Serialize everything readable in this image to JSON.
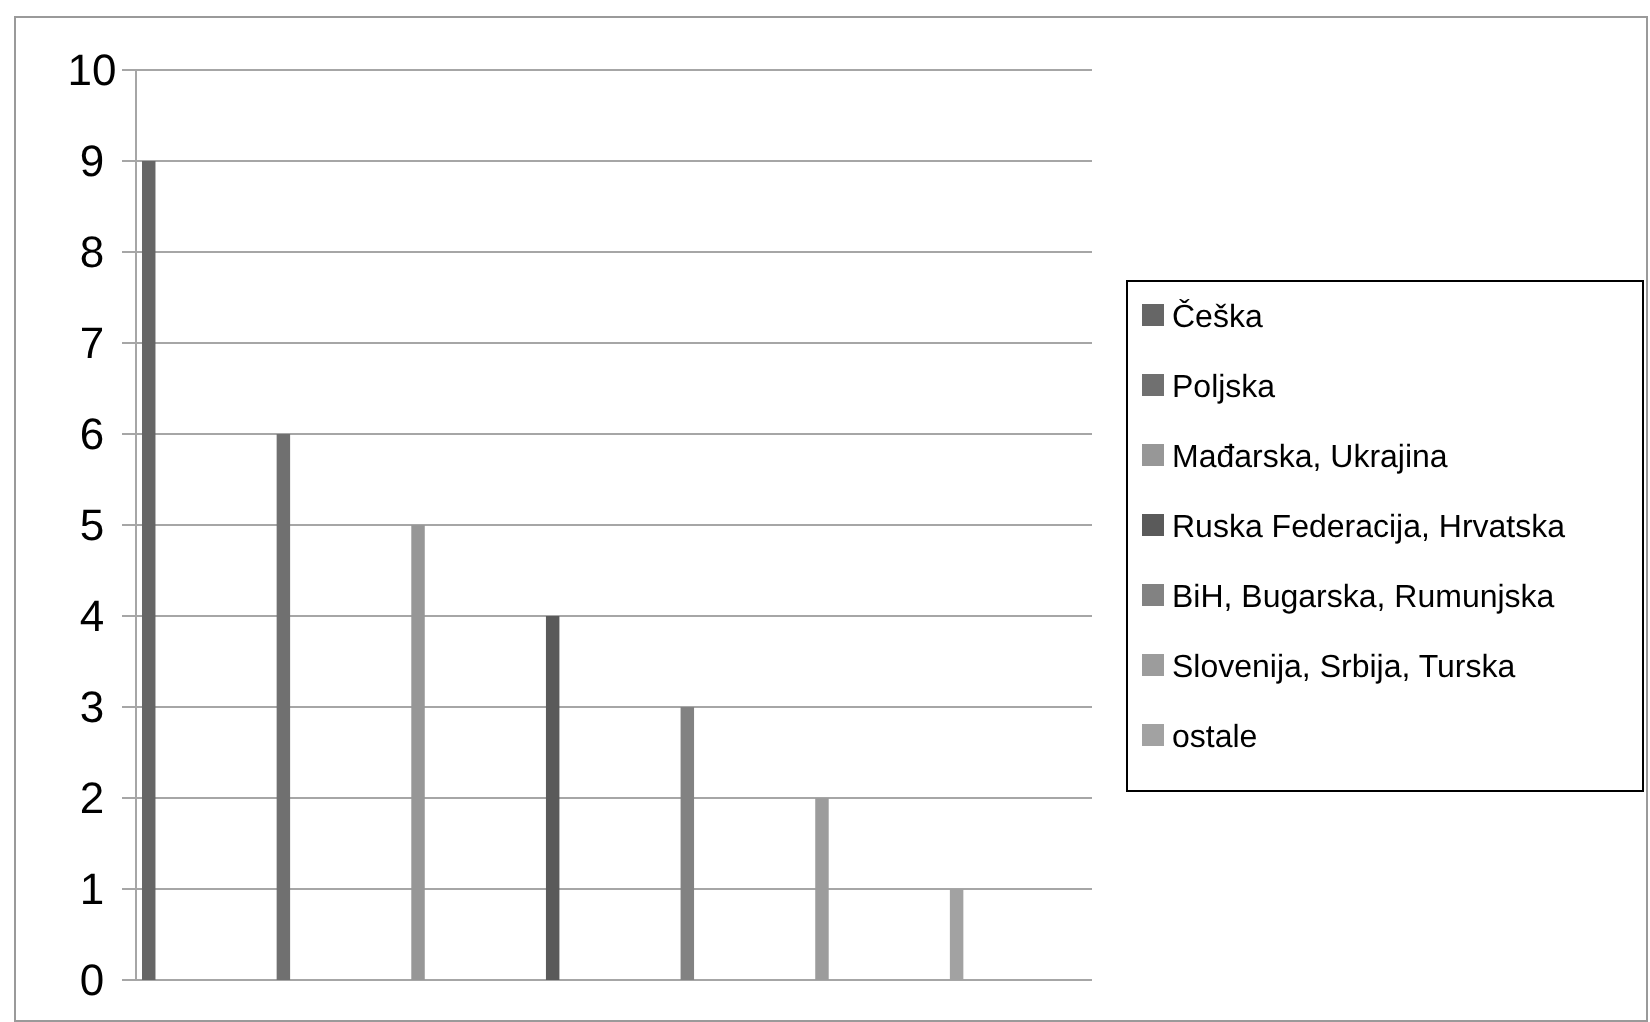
{
  "chart_data": {
    "type": "bar",
    "categories": [
      null
    ],
    "series": [
      {
        "name": "Češka",
        "color": "#666666",
        "values": [
          9
        ]
      },
      {
        "name": "Poljska",
        "color": "#707070",
        "values": [
          6
        ]
      },
      {
        "name": "Mađarska, Ukrajina",
        "color": "#979797",
        "values": [
          5
        ]
      },
      {
        "name": "Ruska Federacija, Hrvatska",
        "color": "#5a5a5a",
        "values": [
          4
        ]
      },
      {
        "name": "BiH, Bugarska, Rumunjska",
        "color": "#828282",
        "values": [
          3
        ]
      },
      {
        "name": "Slovenija, Srbija, Turska",
        "color": "#9c9c9c",
        "values": [
          2
        ]
      },
      {
        "name": "ostale",
        "color": "#a2a2a2",
        "values": [
          1
        ]
      }
    ],
    "ylim": [
      0,
      10
    ],
    "yticks": [
      0,
      1,
      2,
      3,
      4,
      5,
      6,
      7,
      8,
      9,
      10
    ],
    "grid": "y",
    "legend": "right"
  }
}
